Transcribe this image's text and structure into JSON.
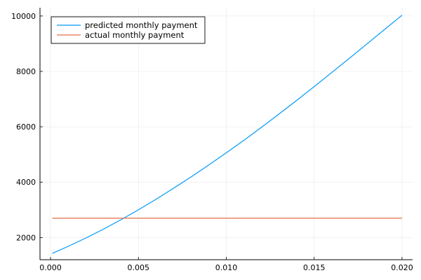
{
  "chart_data": {
    "type": "line",
    "title": "",
    "xlabel": "",
    "ylabel": "",
    "xlim": [
      -0.0006,
      0.0206
    ],
    "ylim": [
      1200,
      10300
    ],
    "xticks": [
      0.0,
      0.005,
      0.01,
      0.015,
      0.02
    ],
    "xtick_labels": [
      "0.000",
      "0.005",
      "0.010",
      "0.015",
      "0.020"
    ],
    "yticks": [
      2000,
      4000,
      6000,
      8000,
      10000
    ],
    "ytick_labels": [
      "2000",
      "4000",
      "6000",
      "8000",
      "10000"
    ],
    "grid": true,
    "legend_position": "top-left",
    "series": [
      {
        "name": "predicted monthly payment",
        "color": "#009AFA",
        "x": [
          0.0001,
          0.001,
          0.002,
          0.003,
          0.004,
          0.005,
          0.006,
          0.007,
          0.008,
          0.009,
          0.01,
          0.011,
          0.012,
          0.013,
          0.014,
          0.015,
          0.016,
          0.017,
          0.018,
          0.019,
          0.02
        ],
        "y": [
          1430,
          1680,
          1980,
          2300,
          2640,
          3000,
          3380,
          3780,
          4190,
          4620,
          5060,
          5510,
          5980,
          6460,
          6950,
          7450,
          7960,
          8470,
          8990,
          9510,
          10030
        ]
      },
      {
        "name": "actual monthly payment",
        "color": "#E26F46",
        "x": [
          0.0001,
          0.02
        ],
        "y": [
          2700,
          2700
        ]
      }
    ]
  }
}
